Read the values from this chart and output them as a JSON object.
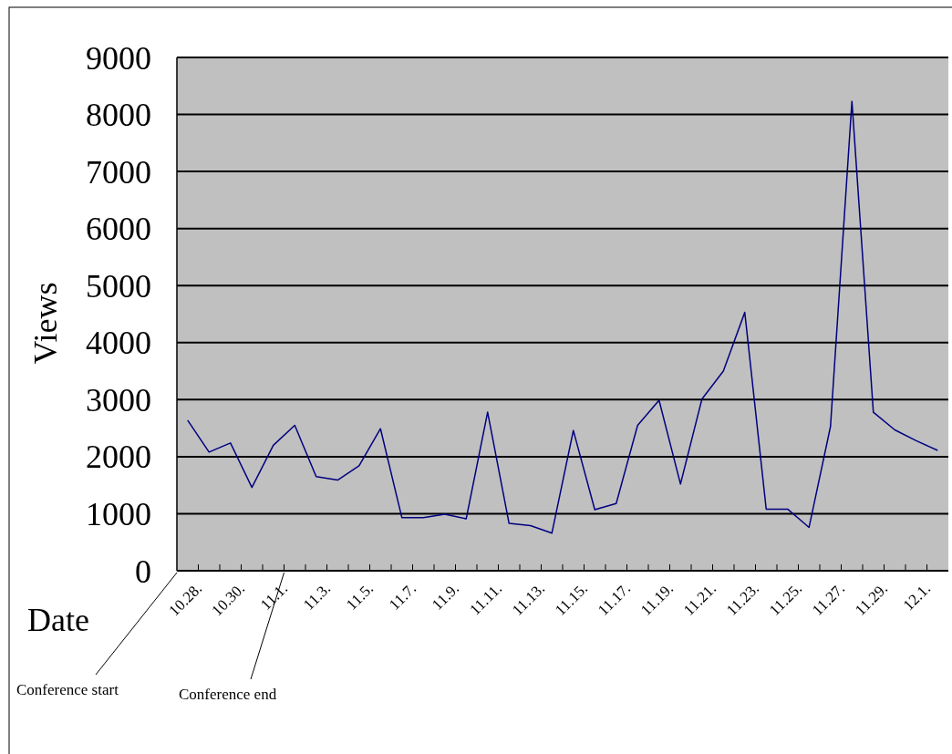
{
  "chart_data": {
    "type": "line",
    "xlabel": "Date",
    "ylabel": "Views",
    "categories": [
      "10.28.",
      null,
      "10.30.",
      null,
      "11.1.",
      null,
      "11.3.",
      null,
      "11.5.",
      null,
      "11.7.",
      null,
      "11.9.",
      null,
      "11.11.",
      null,
      "11.13.",
      null,
      "11.15.",
      null,
      "11.17.",
      null,
      "11.19.",
      null,
      "11.21.",
      null,
      "11.23.",
      null,
      "11.25.",
      null,
      "11.27.",
      null,
      "11.29.",
      null,
      "12.1.",
      null
    ],
    "series": [
      {
        "color": "#000080",
        "values": [
          2640,
          2080,
          2240,
          1460,
          2200,
          2550,
          1650,
          1590,
          1840,
          2490,
          930,
          930,
          990,
          910,
          2780,
          830,
          790,
          660,
          2460,
          1070,
          1180,
          2550,
          2990,
          1520,
          3010,
          3500,
          4530,
          1080,
          1080,
          760,
          2530,
          8230,
          2780,
          2470,
          2280,
          2110
        ]
      }
    ],
    "ylim": [
      0,
      9000
    ],
    "yticks": [
      0,
      1000,
      2000,
      3000,
      4000,
      5000,
      6000,
      7000,
      8000,
      9000
    ],
    "grid": "y",
    "marker": "none",
    "line_style": "solid",
    "annotations": [
      "Conference start",
      "Conference end"
    ]
  }
}
